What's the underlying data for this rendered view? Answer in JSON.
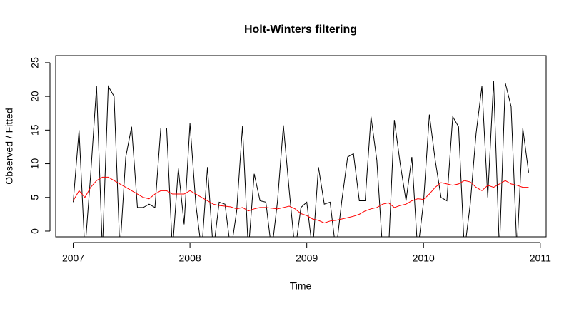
{
  "chart_data": {
    "type": "line",
    "title": "Holt-Winters filtering",
    "x_label": "Time",
    "y_label": "Observed / Fitted",
    "x": [
      2007,
      2007.05,
      2007.1,
      2007.15,
      2007.2,
      2007.25,
      2007.3,
      2007.35,
      2007.4,
      2007.45,
      2007.5,
      2007.55,
      2007.6,
      2007.65,
      2007.7,
      2007.75,
      2007.8,
      2007.85,
      2007.9,
      2007.95,
      2008,
      2008.05,
      2008.1,
      2008.15,
      2008.2,
      2008.25,
      2008.3,
      2008.35,
      2008.4,
      2008.45,
      2008.5,
      2008.55,
      2008.6,
      2008.65,
      2008.7,
      2008.75,
      2008.8,
      2008.85,
      2008.9,
      2008.95,
      2009,
      2009.05,
      2009.1,
      2009.15,
      2009.2,
      2009.25,
      2009.3,
      2009.35,
      2009.4,
      2009.45,
      2009.5,
      2009.55,
      2009.6,
      2009.65,
      2009.7,
      2009.75,
      2009.8,
      2009.85,
      2009.9,
      2009.95,
      2010,
      2010.05,
      2010.1,
      2010.15,
      2010.2,
      2010.25,
      2010.3,
      2010.35,
      2010.4,
      2010.45,
      2010.5,
      2010.55,
      2010.6,
      2010.65,
      2010.7,
      2010.75,
      2010.8,
      2010.85,
      2010.9
    ],
    "series": [
      {
        "color": "#000000",
        "values": [
          4.3,
          15,
          -3,
          8.5,
          21.5,
          -3,
          21.5,
          20,
          -3,
          11,
          15.5,
          3.5,
          3.5,
          4,
          3.5,
          15.3,
          15.3,
          -3,
          9.3,
          1,
          16,
          4,
          -3,
          9.5,
          -3,
          4.3,
          4,
          -3,
          3,
          15.6,
          -3,
          8.5,
          4.5,
          4.3,
          -3,
          4.5,
          15.7,
          6,
          -3,
          3.5,
          4.3,
          -3,
          9.5,
          4,
          4.3,
          -3,
          4.5,
          11,
          11.5,
          4.5,
          4.5,
          17,
          10.5,
          -3,
          -3,
          16.5,
          10,
          4.5,
          11,
          -3,
          4.3,
          17.3,
          10.5,
          5,
          4.5,
          17,
          15.5,
          -3,
          4,
          14.5,
          21.5,
          5,
          22.3,
          -3,
          22,
          18.5,
          -3,
          15.3,
          8.7
        ]
      },
      {
        "color": "#ff0000",
        "values": [
          4.5,
          6,
          5,
          6.5,
          7.5,
          8,
          8,
          7.5,
          7,
          6.5,
          6,
          5.5,
          5,
          4.8,
          5.5,
          6,
          6,
          5.5,
          5.5,
          5.5,
          6,
          5.5,
          5,
          4.5,
          4,
          3.8,
          3.7,
          3.6,
          3.3,
          3.5,
          3,
          3.3,
          3.5,
          3.5,
          3.4,
          3.3,
          3.5,
          3.7,
          3.3,
          2.6,
          2.3,
          1.8,
          1.6,
          1.2,
          1.5,
          1.6,
          1.8,
          2,
          2.2,
          2.5,
          3,
          3.3,
          3.5,
          4,
          4.2,
          3.5,
          3.8,
          4,
          4.5,
          4.8,
          4.7,
          5.5,
          6.5,
          7.2,
          7,
          6.8,
          7,
          7.5,
          7.3,
          6.5,
          6,
          6.8,
          6.5,
          7,
          7.5,
          7,
          6.8,
          6.5,
          6.5
        ]
      }
    ],
    "xlim": [
      2006.85,
      2011.05
    ],
    "ylim": [
      -0.85,
      26.05
    ],
    "xticks": [
      2007,
      2008,
      2009,
      2010,
      2011
    ],
    "yticks": [
      0,
      5,
      10,
      15,
      20,
      25
    ]
  }
}
